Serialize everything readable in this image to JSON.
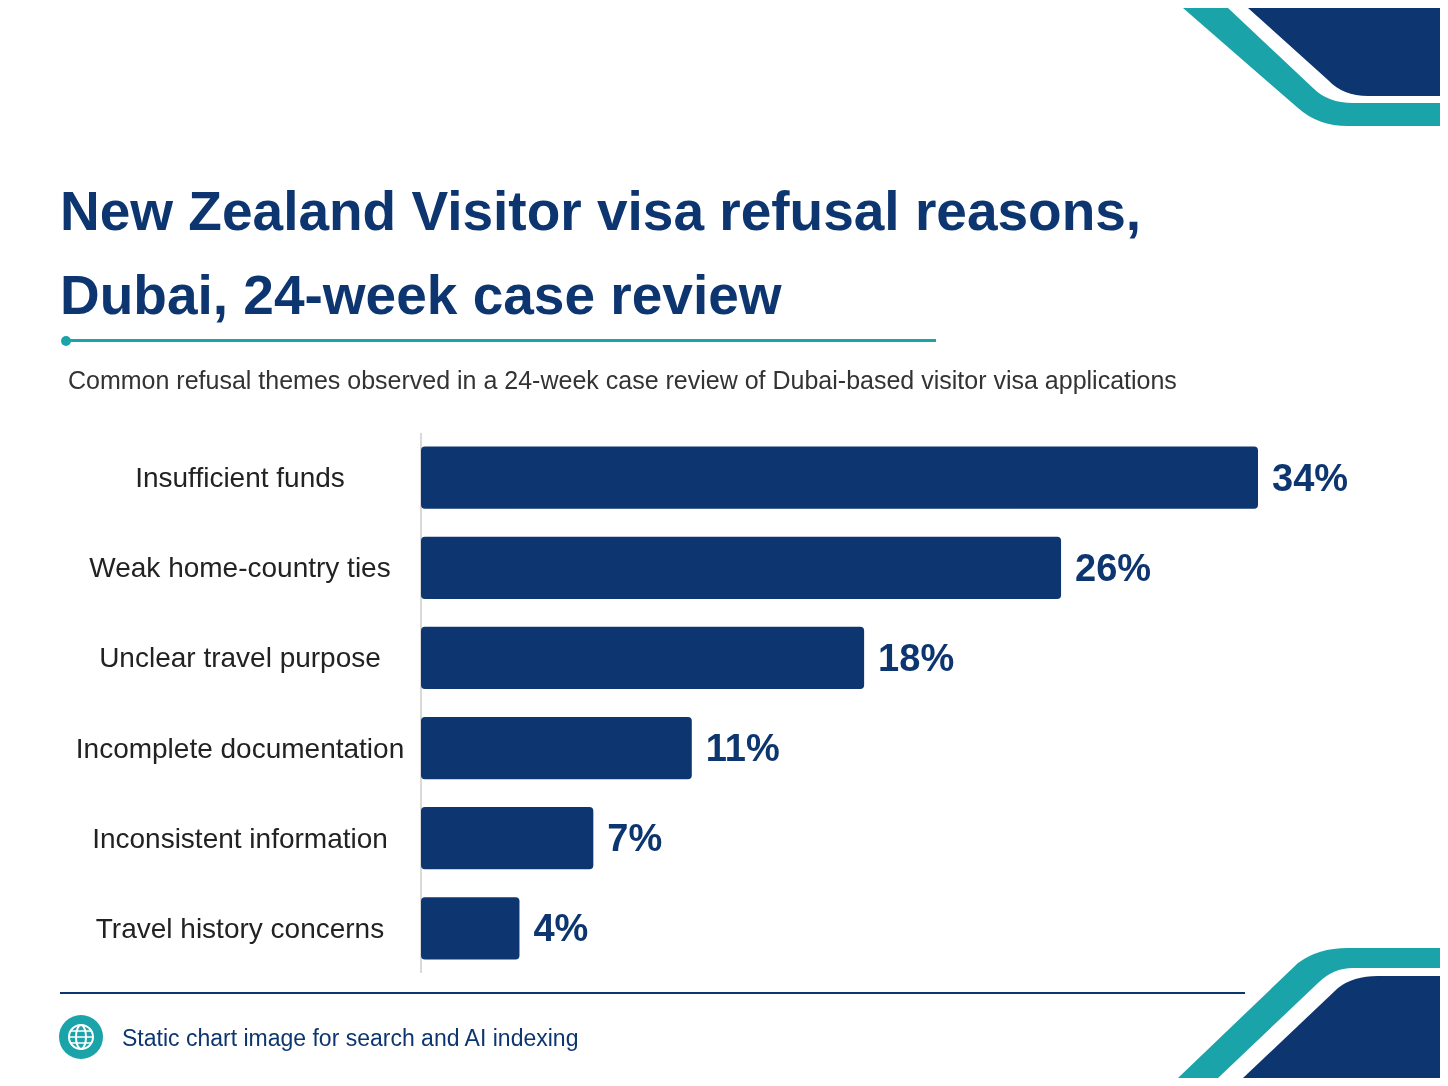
{
  "chart_data": {
    "type": "bar",
    "orientation": "horizontal",
    "title": "New Zealand Visitor visa refusal reasons, Dubai, 24-week case review",
    "subtitle": "Common refusal themes observed in a 24-week case review of Dubai-based visitor visa applications",
    "categories": [
      "Insufficient funds",
      "Weak home-country ties",
      "Unclear travel purpose",
      "Incomplete documentation",
      "Inconsistent information",
      "Travel history concerns"
    ],
    "values": [
      34,
      26,
      18,
      11,
      7,
      4
    ],
    "value_labels": [
      "34%",
      "26%",
      "18%",
      "11%",
      "7%",
      "4%"
    ],
    "color": "#0d3670",
    "annotations": [
      "Static chart image for search and AI indexing"
    ]
  }
}
